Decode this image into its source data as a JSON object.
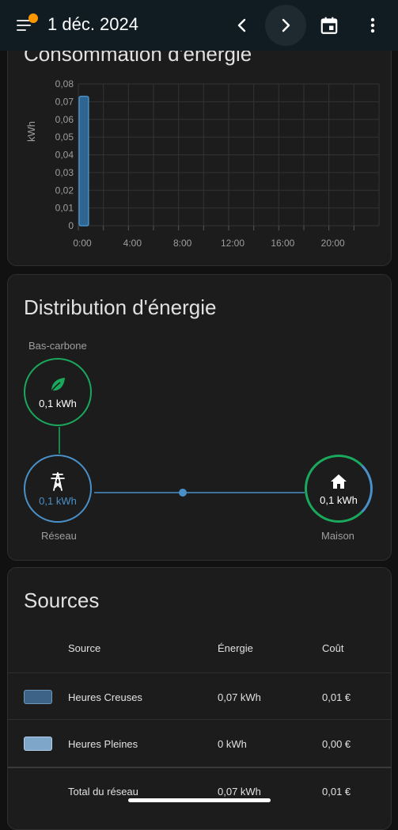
{
  "header": {
    "title": "1 déc. 2024",
    "has_notification": true,
    "icons": [
      "menu-icon",
      "chevron-left-icon",
      "chevron-right-icon",
      "calendar-icon",
      "more-vert-icon"
    ]
  },
  "consumption": {
    "title": "Consommation d'énergie"
  },
  "chart_data": {
    "type": "bar",
    "title": "Consommation d'énergie",
    "ylabel": "kWh",
    "xlabel": "",
    "x_ticks": [
      "0:00",
      "4:00",
      "8:00",
      "12:00",
      "16:00",
      "20:00"
    ],
    "y_ticks": [
      "0,08",
      "0,07",
      "0,06",
      "0,05",
      "0,04",
      "0,03",
      "0,02",
      "0,01",
      "0"
    ],
    "ylim": [
      0,
      0.08
    ],
    "xlim": [
      0,
      24
    ],
    "grid": true,
    "series": [
      {
        "x": [
          0
        ],
        "values": [
          0.073
        ],
        "color": "#4a90c8"
      }
    ]
  },
  "distribution": {
    "title": "Distribution d'énergie",
    "low_carbon": {
      "label": "Bas-carbone",
      "value": "0,1 kWh"
    },
    "grid": {
      "label": "Réseau",
      "value": "0,1 kWh"
    },
    "home": {
      "label": "Maison",
      "value": "0,1 kWh"
    },
    "colors": {
      "low_carbon": "#1aa85c",
      "grid": "#4a90c8",
      "home": "#1aa85c"
    }
  },
  "sources": {
    "title": "Sources",
    "columns": [
      "Source",
      "Énergie",
      "Coût"
    ],
    "rows": [
      {
        "name": "Heures Creuses",
        "energy": "0,07 kWh",
        "cost": "0,01 €",
        "color": "#3d6486"
      },
      {
        "name": "Heures Pleines",
        "energy": "0 kWh",
        "cost": "0,00 €",
        "color": "#7ea6c8"
      }
    ],
    "total": {
      "name": "Total du réseau",
      "energy": "0,07 kWh",
      "cost": "0,01 €"
    }
  }
}
